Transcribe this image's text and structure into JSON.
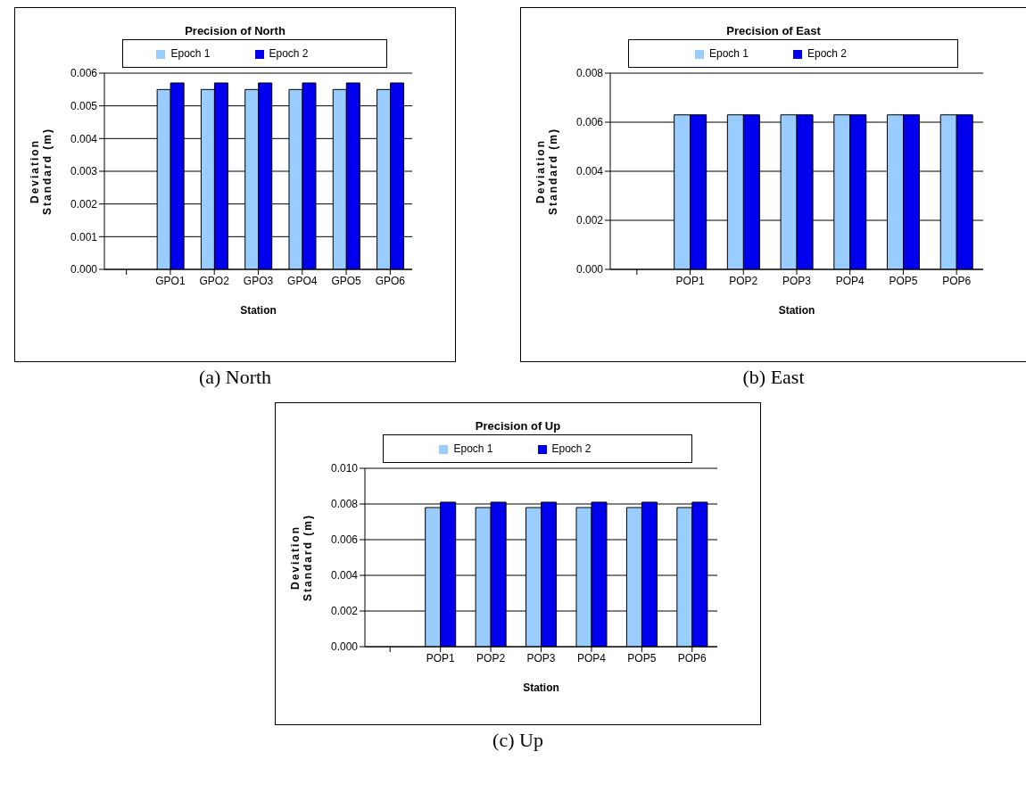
{
  "chart_data": [
    {
      "type": "bar",
      "title": "Precision of North",
      "xlabel": "Station",
      "ylabel": "Deviation Standard (m)",
      "categories": [
        null,
        "GPO1",
        "GPO2",
        "GPO3",
        "GPO4",
        "GPO5",
        "GPO6"
      ],
      "series": [
        {
          "name": "Epoch 1",
          "color": "#99ccff",
          "values": [
            0,
            0.0055,
            0.0055,
            0.0055,
            0.0055,
            0.0055,
            0.0055
          ]
        },
        {
          "name": "Epoch 2",
          "color": "#0000ee",
          "values": [
            0,
            0.0057,
            0.0057,
            0.0057,
            0.0057,
            0.0057,
            0.0057
          ]
        }
      ],
      "ylim": [
        0,
        0.006
      ],
      "yticks": [
        {
          "value": 0,
          "label": "0.000"
        },
        {
          "value": 0.001,
          "label": "0.001"
        },
        {
          "value": 0.002,
          "label": "0.002"
        },
        {
          "value": 0.003,
          "label": "0.003"
        },
        {
          "value": 0.004,
          "label": "0.004"
        },
        {
          "value": 0.005,
          "label": "0.005"
        },
        {
          "value": 0.006,
          "label": "0.006"
        }
      ],
      "grid": "y",
      "legend": "top",
      "annotations": [
        "(a) North"
      ]
    },
    {
      "type": "bar",
      "title": "Precision of East",
      "xlabel": "Station",
      "ylabel": "Deviation Standard (m)",
      "categories": [
        null,
        "POP1",
        "POP2",
        "POP3",
        "POP4",
        "POP5",
        "POP6"
      ],
      "series": [
        {
          "name": "Epoch 1",
          "color": "#99ccff",
          "values": [
            0,
            0.0063,
            0.0063,
            0.0063,
            0.0063,
            0.0063,
            0.0063
          ]
        },
        {
          "name": "Epoch 2",
          "color": "#0000ee",
          "values": [
            0,
            0.0063,
            0.0063,
            0.0063,
            0.0063,
            0.0063,
            0.0063
          ]
        }
      ],
      "ylim": [
        0,
        0.008
      ],
      "yticks": [
        {
          "value": 0,
          "label": "0.000"
        },
        {
          "value": 0.002,
          "label": "0.002"
        },
        {
          "value": 0.004,
          "label": "0.004"
        },
        {
          "value": 0.006,
          "label": "0.006"
        },
        {
          "value": 0.008,
          "label": "0.008"
        }
      ],
      "grid": "y",
      "legend": "top",
      "annotations": [
        "(b) East"
      ]
    },
    {
      "type": "bar",
      "title": "Precision of Up",
      "xlabel": "Station",
      "ylabel": "Deviation Standard (m)",
      "categories": [
        null,
        "POP1",
        "POP2",
        "POP3",
        "POP4",
        "POP5",
        "POP6"
      ],
      "series": [
        {
          "name": "Epoch 1",
          "color": "#99ccff",
          "values": [
            0,
            0.0078,
            0.0078,
            0.0078,
            0.0078,
            0.0078,
            0.0078
          ]
        },
        {
          "name": "Epoch 2",
          "color": "#0000ee",
          "values": [
            0,
            0.0081,
            0.0081,
            0.0081,
            0.0081,
            0.0081,
            0.0081
          ]
        }
      ],
      "ylim": [
        0,
        0.01
      ],
      "yticks": [
        {
          "value": 0,
          "label": "0.000"
        },
        {
          "value": 0.002,
          "label": "0.002"
        },
        {
          "value": 0.004,
          "label": "0.004"
        },
        {
          "value": 0.006,
          "label": "0.006"
        },
        {
          "value": 0.008,
          "label": "0.008"
        },
        {
          "value": 0.01,
          "label": "0.010"
        }
      ],
      "grid": "y",
      "legend": "top",
      "annotations": [
        "(c) Up"
      ]
    }
  ]
}
